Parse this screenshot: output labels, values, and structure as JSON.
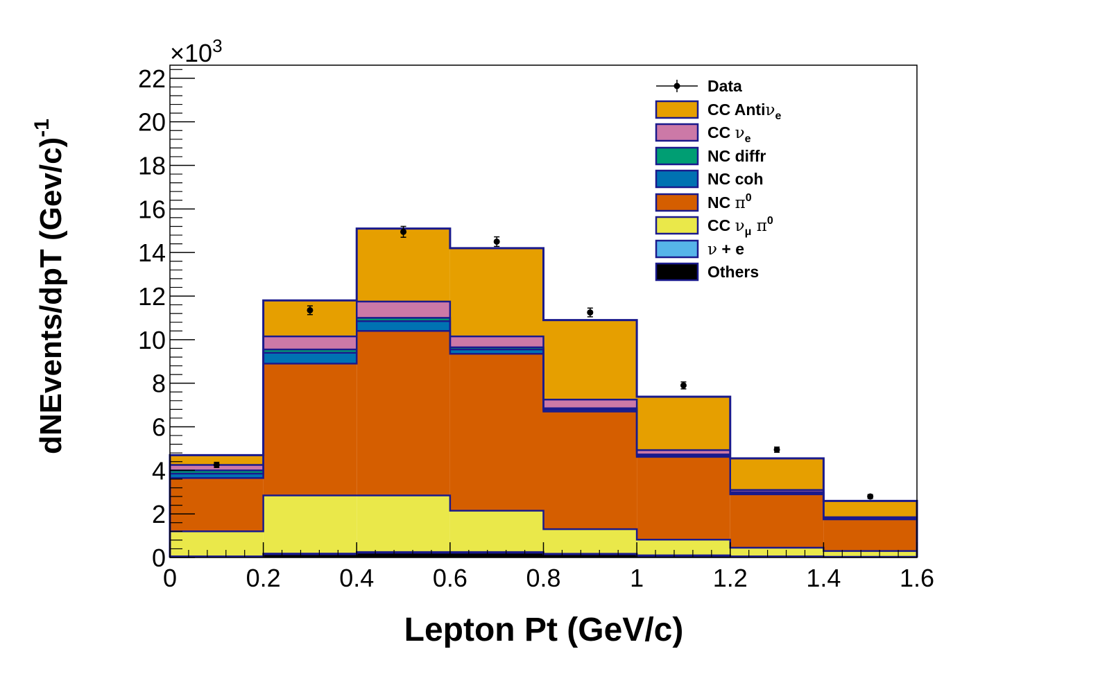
{
  "chart_data": {
    "type": "stacked-histogram",
    "xlabel": "Lepton Pt (GeV/c)",
    "ylabel": "dNEvents/dpT (Gev/c)",
    "ylabel_exponent": "-1",
    "y_multiplier": "×10",
    "y_multiplier_exponent": "3",
    "xlim": [
      0,
      1.6
    ],
    "ylim": [
      0,
      22.6
    ],
    "x_ticks": [
      "0",
      "0.2",
      "0.4",
      "0.6",
      "0.8",
      "1",
      "1.2",
      "1.4",
      "1.6"
    ],
    "x_tick_values": [
      0,
      0.2,
      0.4,
      0.6,
      0.8,
      1.0,
      1.2,
      1.4,
      1.6
    ],
    "y_ticks": [
      "0",
      "2",
      "4",
      "6",
      "8",
      "10",
      "12",
      "14",
      "16",
      "18",
      "20",
      "22"
    ],
    "y_tick_values": [
      0,
      2,
      4,
      6,
      8,
      10,
      12,
      14,
      16,
      18,
      20,
      22
    ],
    "bin_edges": [
      0,
      0.2,
      0.4,
      0.6,
      0.8,
      1.0,
      1.2,
      1.4,
      1.6
    ],
    "series": [
      {
        "name": "Others",
        "color": "#000000",
        "values": [
          0.03,
          0.15,
          0.22,
          0.22,
          0.15,
          0.08,
          0.04,
          0.02
        ]
      },
      {
        "name": "ν + e",
        "color": "#56b4e9",
        "values": [
          0.02,
          0.03,
          0.03,
          0.03,
          0.02,
          0.02,
          0.01,
          0.01
        ]
      },
      {
        "name": "CC νμ π0",
        "color": "#eae84a",
        "values": [
          1.15,
          2.67,
          2.6,
          1.9,
          1.13,
          0.72,
          0.4,
          0.27
        ]
      },
      {
        "name": "NC π0",
        "color": "#d55e00",
        "values": [
          2.45,
          6.05,
          7.55,
          7.2,
          5.4,
          3.8,
          2.45,
          1.45
        ]
      },
      {
        "name": "NC coh",
        "color": "#0072b2",
        "values": [
          0.2,
          0.5,
          0.45,
          0.2,
          0.08,
          0.06,
          0.06,
          0.02
        ]
      },
      {
        "name": "NC diffr",
        "color": "#009e73",
        "values": [
          0.15,
          0.15,
          0.15,
          0.1,
          0.07,
          0.05,
          0.04,
          0.03
        ]
      },
      {
        "name": "CC νe",
        "color": "#cc79a7",
        "values": [
          0.25,
          0.6,
          0.75,
          0.5,
          0.4,
          0.2,
          0.1,
          0.05
        ]
      },
      {
        "name": "CC Anti νe",
        "color": "#e69f00",
        "values": [
          0.45,
          1.65,
          3.35,
          4.05,
          3.65,
          2.45,
          1.45,
          0.75
        ]
      }
    ],
    "data_points": {
      "name": "Data",
      "x": [
        0.1,
        0.3,
        0.5,
        0.7,
        0.9,
        1.1,
        1.3,
        1.5
      ],
      "y": [
        4.25,
        11.35,
        14.95,
        14.5,
        11.25,
        7.9,
        4.95,
        2.8
      ],
      "yerr": [
        0.12,
        0.2,
        0.25,
        0.22,
        0.2,
        0.16,
        0.12,
        0.09
      ]
    },
    "legend": {
      "placement": "top-right",
      "entries": [
        {
          "label": "Data",
          "kind": "marker"
        },
        {
          "label": "CC Anti",
          "sym": "ν",
          "sub": "e",
          "kind": "box",
          "color": "#e69f00"
        },
        {
          "label": "CC ",
          "sym": "ν",
          "sub": "e",
          "kind": "box",
          "color": "#cc79a7"
        },
        {
          "label": "NC diffr",
          "kind": "box",
          "color": "#009e73"
        },
        {
          "label": "NC coh",
          "kind": "box",
          "color": "#0072b2"
        },
        {
          "label": "NC ",
          "sym": "π",
          "sup": "0",
          "kind": "box",
          "color": "#d55e00"
        },
        {
          "label": "CC ",
          "sym": "ν",
          "sub": "μ",
          "sym2": " π",
          "sup": "0",
          "kind": "box",
          "color": "#eae84a"
        },
        {
          "label": "",
          "sym": "ν",
          "post": " + e",
          "kind": "box",
          "color": "#56b4e9"
        },
        {
          "label": "Others",
          "kind": "box",
          "color": "#000000"
        }
      ]
    },
    "colors": {
      "outline": "#1a1a8c",
      "axis": "#000000"
    }
  }
}
